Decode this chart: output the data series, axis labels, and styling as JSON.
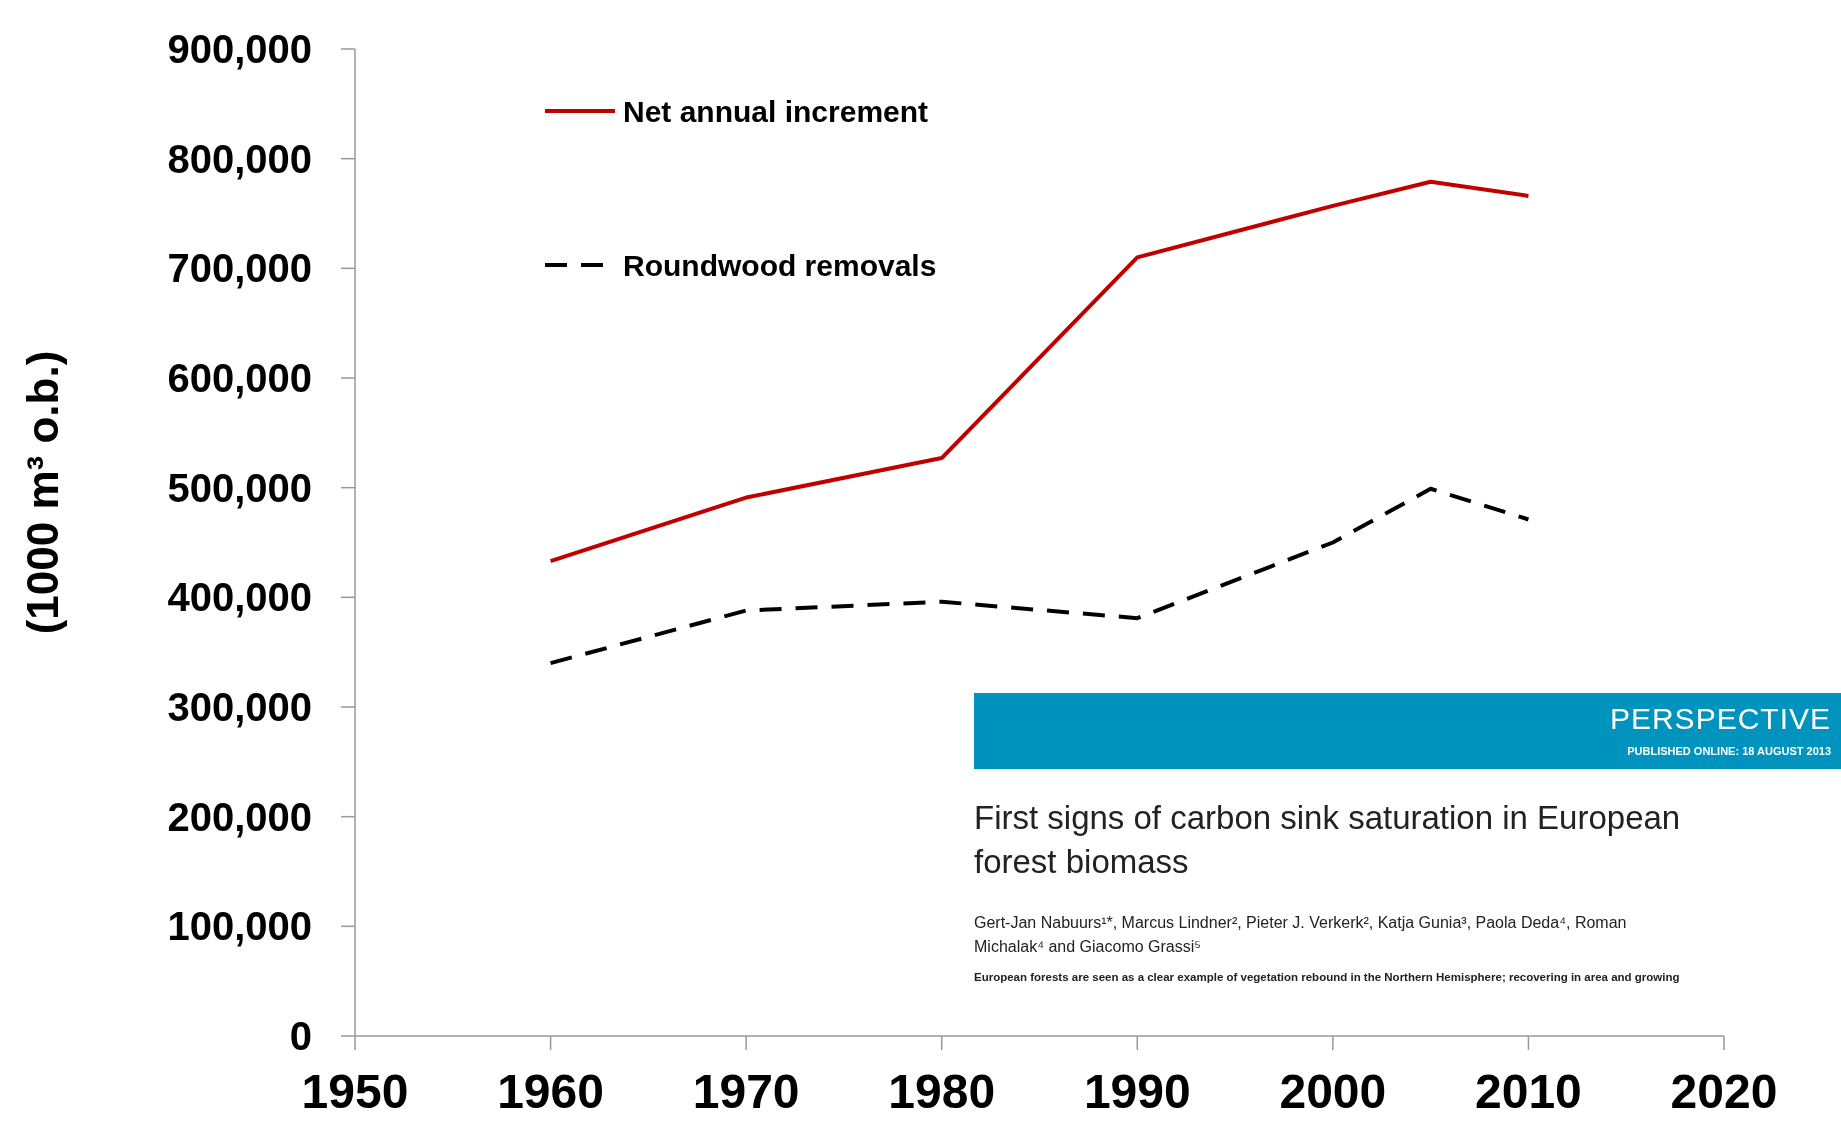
{
  "chart_data": {
    "type": "line",
    "ylabel": "(1000 m³ o.b.)",
    "x": [
      1960,
      1970,
      1980,
      1990,
      2000,
      2005,
      2010
    ],
    "series": [
      {
        "name": "Net annual increment",
        "color": "#c00000",
        "line_style": "solid",
        "values": [
          433000,
          491000,
          527000,
          710000,
          757000,
          779000,
          766000
        ]
      },
      {
        "name": "Roundwood removals",
        "color": "#000000",
        "line_style": "dashed",
        "values": [
          340000,
          388000,
          396000,
          381000,
          450000,
          499000,
          471000
        ]
      }
    ],
    "xlim": [
      1950,
      2020
    ],
    "xticks": [
      1950,
      1960,
      1970,
      1980,
      1990,
      2000,
      2010,
      2020
    ],
    "ylim": [
      0,
      900000
    ],
    "yticks": [
      {
        "value": 0,
        "label": "0"
      },
      {
        "value": 100000,
        "label": "100,000"
      },
      {
        "value": 200000,
        "label": "200,000"
      },
      {
        "value": 300000,
        "label": "300,000"
      },
      {
        "value": 400000,
        "label": "400,000"
      },
      {
        "value": 500000,
        "label": "500,000"
      },
      {
        "value": 600000,
        "label": "600,000"
      },
      {
        "value": 700000,
        "label": "700,000"
      },
      {
        "value": 800000,
        "label": "800,000"
      },
      {
        "value": 900000,
        "label": "900,000"
      }
    ],
    "legend": "top left",
    "marker": "none",
    "grid": false,
    "annotations": [
      "PERSPECTIVE",
      "PUBLISHED ONLINE: 18 AUGUST 2013",
      "First signs of carbon sink saturation in European forest biomass",
      "Gert-Jan Nabuurs¹*, Marcus Lindner², Pieter J. Verkerk², Katja Gunia³, Paola Deda⁴, Roman Michalak⁴ and Giacomo Grassi⁵",
      "European forests are seen as a clear example of vegetation rebound in the Northern Hemisphere; recovering in area and growing"
    ]
  }
}
